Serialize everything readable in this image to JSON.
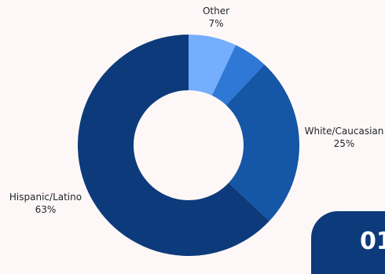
{
  "chart_data": {
    "type": "pie",
    "title": "",
    "donut": true,
    "slices": [
      {
        "label": "Other",
        "value": 7,
        "display": "7%",
        "color": "#74aefc"
      },
      {
        "label": "",
        "value": 5,
        "display": "",
        "color": "#2f78d6"
      },
      {
        "label": "White/Caucasian",
        "value": 25,
        "display": "25%",
        "color": "#1556a6"
      },
      {
        "label": "Hispanic/Latino",
        "value": 63,
        "display": "63%",
        "color": "#0d3a7a"
      }
    ]
  },
  "page_number": "01",
  "colors": {
    "background": "#fdf8f7",
    "badge": "#0d3a7a"
  }
}
